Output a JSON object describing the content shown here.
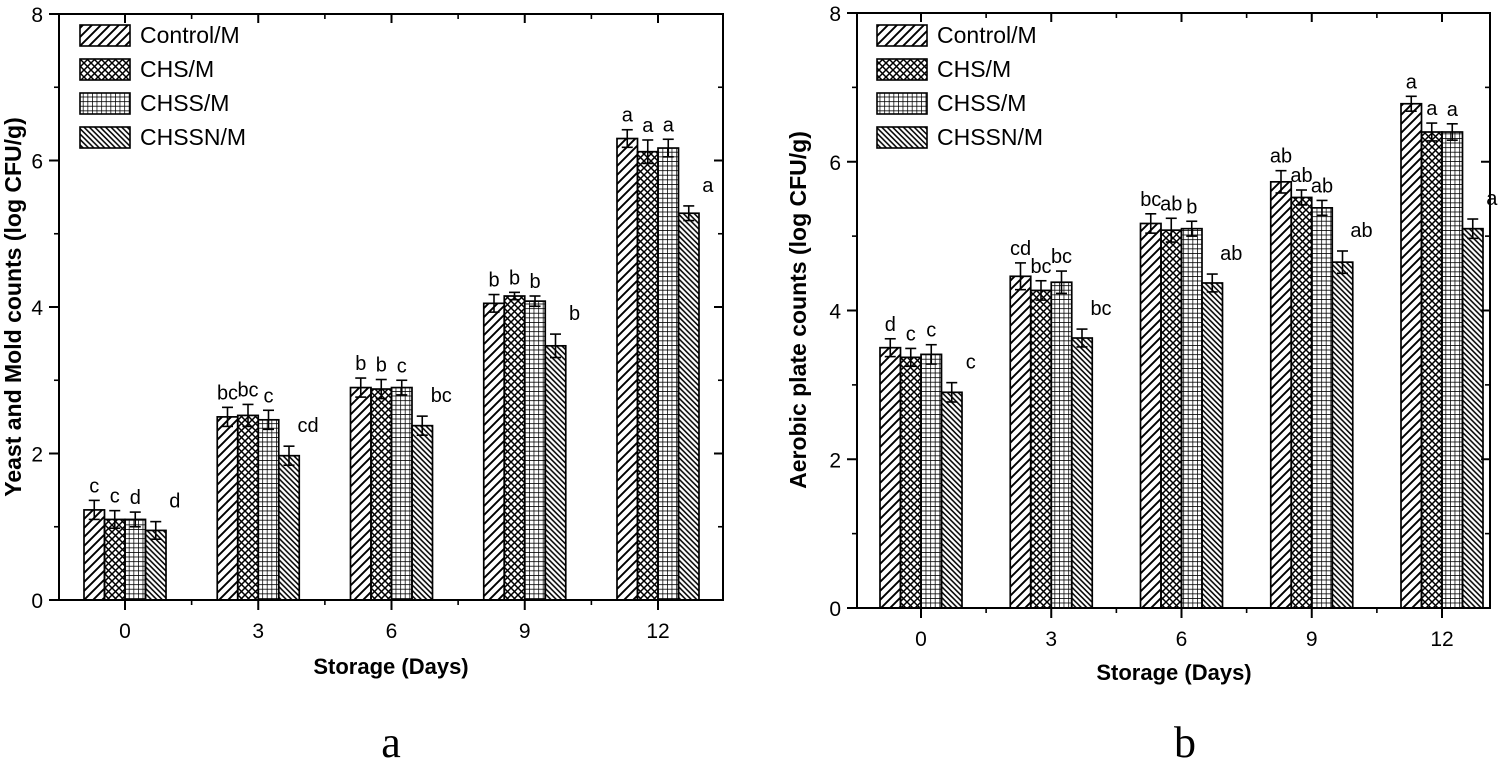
{
  "chart_data": [
    {
      "type": "bar",
      "panel_label": "a",
      "title": "",
      "xlabel": "Storage (Days)",
      "ylabel": "Yeast and Mold counts (log CFU/g)",
      "categories": [
        "0",
        "3",
        "6",
        "9",
        "12"
      ],
      "ylim": [
        0,
        8
      ],
      "yticks": [
        "0",
        "2",
        "4",
        "6",
        "8"
      ],
      "grid": false,
      "legend_position": "top-left",
      "error_bars": true,
      "series": [
        {
          "name": "Control/M",
          "hatch": "diagonal-up",
          "values": [
            1.23,
            2.5,
            2.9,
            4.05,
            6.3
          ],
          "errors": [
            0.13,
            0.13,
            0.13,
            0.12,
            0.12
          ],
          "sig_letters": [
            "c",
            "bc",
            "b",
            "b",
            "a"
          ]
        },
        {
          "name": "CHS/M",
          "hatch": "cross-diagonal",
          "values": [
            1.1,
            2.52,
            2.88,
            4.15,
            6.12
          ],
          "errors": [
            0.12,
            0.15,
            0.13,
            0.05,
            0.16
          ],
          "sig_letters": [
            "c",
            "bc",
            "b",
            "b",
            "a"
          ]
        },
        {
          "name": "CHSS/M",
          "hatch": "grid",
          "values": [
            1.1,
            2.46,
            2.9,
            4.08,
            6.17
          ],
          "errors": [
            0.1,
            0.13,
            0.1,
            0.07,
            0.12
          ],
          "sig_letters": [
            "d",
            "c",
            "c",
            "b",
            "a"
          ]
        },
        {
          "name": "CHSSN/M",
          "hatch": "diagonal-down",
          "values": [
            0.95,
            1.97,
            2.38,
            3.47,
            5.28
          ],
          "errors": [
            0.12,
            0.13,
            0.13,
            0.16,
            0.1
          ],
          "sig_letters": [
            "d",
            "cd",
            "bc",
            "b",
            "a"
          ]
        }
      ]
    },
    {
      "type": "bar",
      "panel_label": "b",
      "title": "",
      "xlabel": "Storage (Days)",
      "ylabel": "Aerobic plate counts (log CFU/g)",
      "categories": [
        "0",
        "3",
        "6",
        "9",
        "12"
      ],
      "ylim": [
        0,
        8
      ],
      "yticks": [
        "0",
        "2",
        "4",
        "6",
        "8"
      ],
      "grid": false,
      "legend_position": "top-left",
      "error_bars": true,
      "series": [
        {
          "name": "Control/M",
          "hatch": "diagonal-up",
          "values": [
            3.5,
            4.46,
            5.17,
            5.73,
            6.78
          ],
          "errors": [
            0.12,
            0.18,
            0.13,
            0.15,
            0.1
          ],
          "sig_letters": [
            "d",
            "cd",
            "bc",
            "ab",
            "a"
          ]
        },
        {
          "name": "CHS/M",
          "hatch": "cross-diagonal",
          "values": [
            3.37,
            4.27,
            5.08,
            5.52,
            6.4
          ],
          "errors": [
            0.12,
            0.13,
            0.16,
            0.1,
            0.12
          ],
          "sig_letters": [
            "c",
            "bc",
            "ab",
            "ab",
            "a"
          ]
        },
        {
          "name": "CHSS/M",
          "hatch": "grid",
          "values": [
            3.41,
            4.38,
            5.1,
            5.38,
            6.4
          ],
          "errors": [
            0.13,
            0.15,
            0.1,
            0.1,
            0.11
          ],
          "sig_letters": [
            "c",
            "bc",
            "b",
            "ab",
            "a"
          ]
        },
        {
          "name": "CHSSN/M",
          "hatch": "diagonal-down",
          "values": [
            2.9,
            3.63,
            4.37,
            4.65,
            5.1
          ],
          "errors": [
            0.13,
            0.12,
            0.12,
            0.15,
            0.13
          ],
          "sig_letters": [
            "c",
            "bc",
            "ab",
            "ab",
            "a"
          ]
        }
      ]
    }
  ]
}
